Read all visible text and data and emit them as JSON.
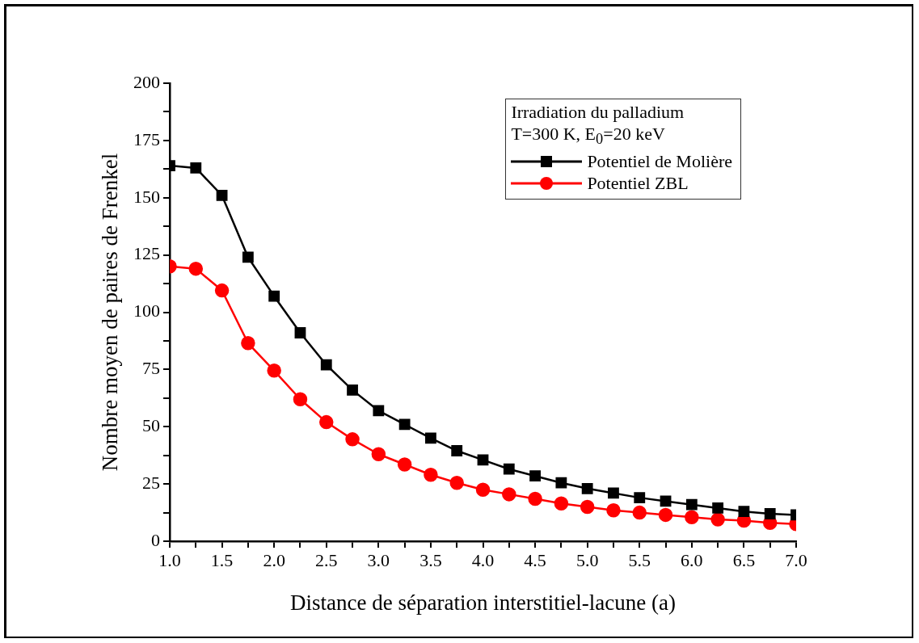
{
  "chart_data": {
    "type": "line",
    "xlabel": "Distance de séparation interstitiel-lacune (a)",
    "ylabel": "Nombre moyen de paires de Frenkel",
    "legend_title": "Irradiation du palladium\nT=300 K, E$_{0}$=20 keV",
    "legend": "top right",
    "grid": false,
    "line_style": "solid",
    "x": [
      1.0,
      1.25,
      1.5,
      1.75,
      2.0,
      2.25,
      2.5,
      2.75,
      3.0,
      3.25,
      3.5,
      3.75,
      4.0,
      4.25,
      4.5,
      4.75,
      5.0,
      5.25,
      5.5,
      5.75,
      6.0,
      6.25,
      6.5,
      6.75,
      7.0
    ],
    "series": [
      {
        "name": "Potentiel de Molière",
        "color": "#000000",
        "marker": "square",
        "values": [
          164,
          163,
          151,
          124,
          107,
          91,
          77,
          66,
          57,
          51,
          45,
          39.5,
          35.5,
          31.5,
          28.5,
          25.5,
          23,
          21,
          19,
          17.5,
          16,
          14.5,
          13,
          12,
          11.5
        ]
      },
      {
        "name": "Potentiel ZBL",
        "color": "#ff0000",
        "marker": "circle",
        "values": [
          120,
          119,
          109.5,
          86.5,
          74.5,
          62,
          52,
          44.5,
          38,
          33.5,
          29,
          25.5,
          22.5,
          20.5,
          18.5,
          16.5,
          15,
          13.5,
          12.5,
          11.5,
          10.5,
          9.5,
          9,
          8,
          7.5
        ]
      }
    ],
    "xlim": [
      1.0,
      7.0
    ],
    "xticks": [
      {
        "value": 1.0,
        "label": "1.0"
      },
      {
        "value": 1.25,
        "label": null
      },
      {
        "value": 1.5,
        "label": "1.5"
      },
      {
        "value": 1.75,
        "label": null
      },
      {
        "value": 2.0,
        "label": "2.0"
      },
      {
        "value": 2.25,
        "label": null
      },
      {
        "value": 2.5,
        "label": "2.5"
      },
      {
        "value": 2.75,
        "label": null
      },
      {
        "value": 3.0,
        "label": "3.0"
      },
      {
        "value": 3.25,
        "label": null
      },
      {
        "value": 3.5,
        "label": "3.5"
      },
      {
        "value": 3.75,
        "label": null
      },
      {
        "value": 4.0,
        "label": "4.0"
      },
      {
        "value": 4.25,
        "label": null
      },
      {
        "value": 4.5,
        "label": "4.5"
      },
      {
        "value": 4.75,
        "label": null
      },
      {
        "value": 5.0,
        "label": "5.0"
      },
      {
        "value": 5.25,
        "label": null
      },
      {
        "value": 5.5,
        "label": "5.5"
      },
      {
        "value": 5.75,
        "label": null
      },
      {
        "value": 6.0,
        "label": "6.0"
      },
      {
        "value": 6.25,
        "label": null
      },
      {
        "value": 6.5,
        "label": "6.5"
      },
      {
        "value": 6.75,
        "label": null
      },
      {
        "value": 7.0,
        "label": "7.0"
      }
    ],
    "ylim": [
      0,
      200
    ],
    "yticks": [
      0,
      {
        "value": 12.5,
        "label": null
      },
      25,
      {
        "value": 37.5,
        "label": null
      },
      50,
      {
        "value": 62.5,
        "label": null
      },
      75,
      {
        "value": 87.5,
        "label": null
      },
      100,
      {
        "value": 112.5,
        "label": null
      },
      125,
      {
        "value": 137.5,
        "label": null
      },
      150,
      {
        "value": 162.5,
        "label": null
      },
      175,
      {
        "value": 187.5,
        "label": null
      },
      200
    ]
  }
}
